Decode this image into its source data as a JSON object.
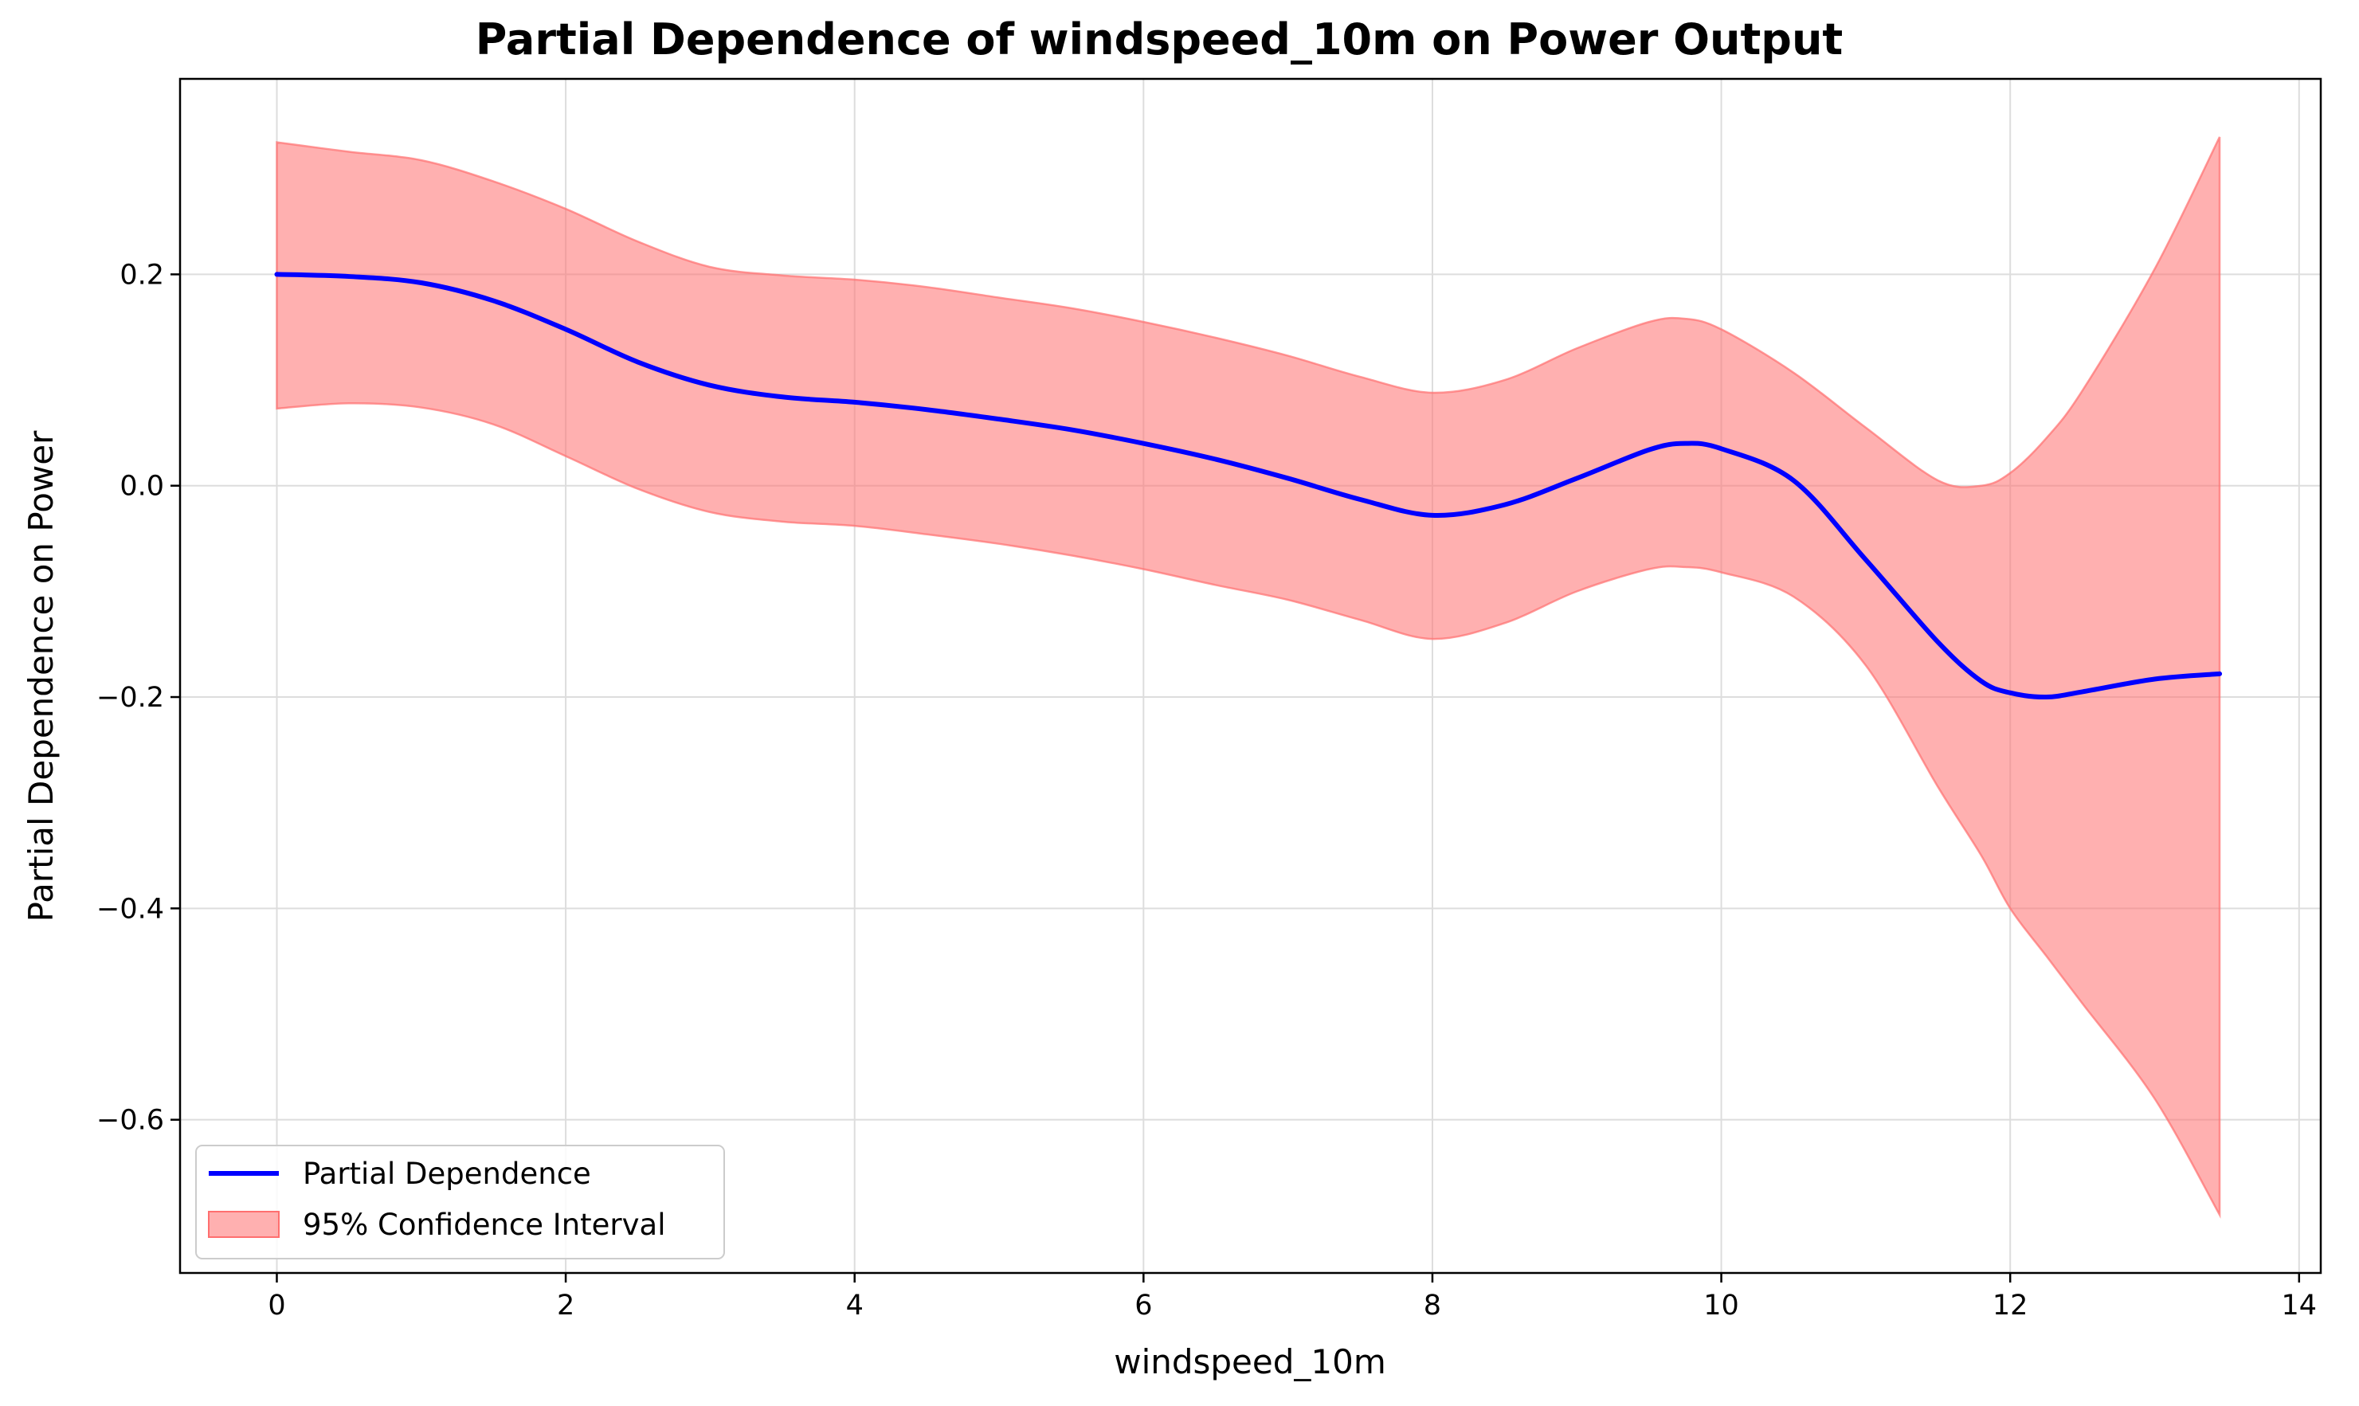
{
  "chart_data": {
    "type": "line",
    "title": "Partial Dependence of windspeed_10m on Power Output",
    "xlabel": "windspeed_10m",
    "ylabel": "Partial Dependence on Power",
    "xlim": [
      -0.67,
      14.15
    ],
    "ylim": [
      -0.745,
      0.385
    ],
    "xticks": [
      0,
      2,
      4,
      6,
      8,
      10,
      12,
      14
    ],
    "xtick_labels": [
      "0",
      "2",
      "4",
      "6",
      "8",
      "10",
      "12",
      "14"
    ],
    "yticks": [
      0.2,
      0.0,
      -0.2,
      -0.4,
      -0.6
    ],
    "ytick_labels": [
      "0.2",
      "0.0",
      "−0.2",
      "−0.4",
      "−0.6"
    ],
    "grid": true,
    "legend_position": "lower-left",
    "series": [
      {
        "name": "Partial Dependence",
        "kind": "line",
        "color": "#0000ff",
        "x": [
          0,
          0.5,
          1.0,
          1.5,
          2.0,
          2.5,
          3.0,
          3.5,
          4.0,
          4.5,
          5.0,
          5.5,
          6.0,
          6.5,
          7.0,
          7.5,
          8.0,
          8.5,
          9.0,
          9.5,
          9.75,
          10.0,
          10.5,
          11.0,
          11.5,
          11.8,
          12.0,
          12.25,
          12.5,
          13.0,
          13.45
        ],
        "y": [
          0.2,
          0.198,
          0.192,
          0.175,
          0.148,
          0.117,
          0.095,
          0.084,
          0.079,
          0.072,
          0.063,
          0.053,
          0.04,
          0.025,
          0.007,
          -0.013,
          -0.028,
          -0.018,
          0.007,
          0.034,
          0.04,
          0.035,
          0.005,
          -0.07,
          -0.148,
          -0.185,
          -0.196,
          -0.2,
          -0.195,
          -0.183,
          -0.178
        ]
      },
      {
        "name": "95% Confidence Interval",
        "kind": "band",
        "color": "#ff6f6f",
        "x": [
          0,
          0.5,
          1.0,
          1.5,
          2.0,
          2.5,
          3.0,
          3.5,
          4.0,
          4.5,
          5.0,
          5.5,
          6.0,
          6.5,
          7.0,
          7.5,
          8.0,
          8.5,
          9.0,
          9.5,
          9.75,
          10.0,
          10.5,
          11.0,
          11.5,
          11.8,
          12.0,
          12.25,
          12.5,
          13.0,
          13.45
        ],
        "lower": [
          0.073,
          0.078,
          0.074,
          0.058,
          0.028,
          -0.003,
          -0.025,
          -0.034,
          -0.038,
          -0.046,
          -0.055,
          -0.066,
          -0.079,
          -0.094,
          -0.108,
          -0.127,
          -0.145,
          -0.13,
          -0.1,
          -0.079,
          -0.077,
          -0.082,
          -0.105,
          -0.17,
          -0.285,
          -0.35,
          -0.4,
          -0.445,
          -0.49,
          -0.58,
          -0.69
        ],
        "upper": [
          0.325,
          0.316,
          0.308,
          0.288,
          0.262,
          0.231,
          0.207,
          0.199,
          0.195,
          0.188,
          0.178,
          0.168,
          0.155,
          0.14,
          0.123,
          0.103,
          0.088,
          0.1,
          0.13,
          0.155,
          0.158,
          0.148,
          0.107,
          0.055,
          0.005,
          0.0,
          0.012,
          0.045,
          0.09,
          0.205,
          0.33
        ]
      }
    ]
  }
}
